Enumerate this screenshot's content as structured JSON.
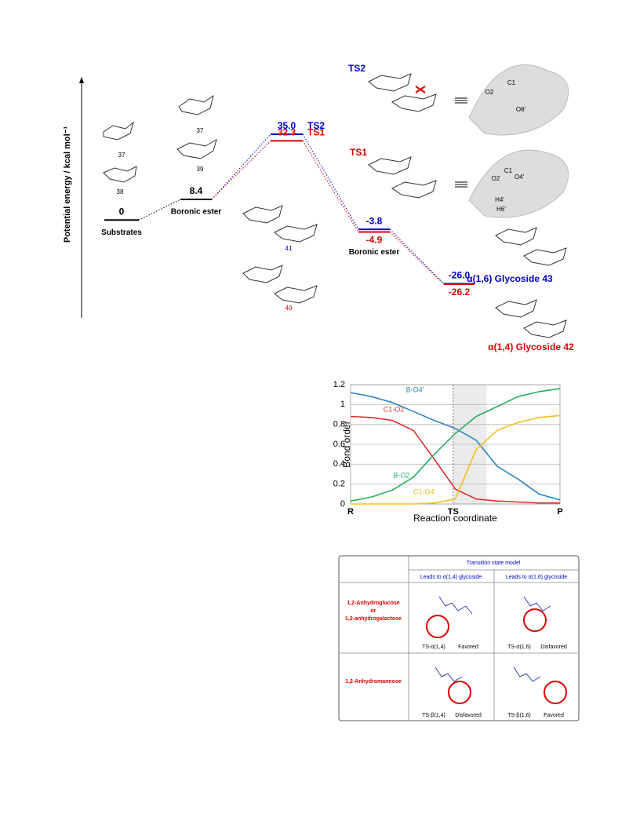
{
  "energy_diagram": {
    "y_label": "Potential energy / kcal mol⁻¹",
    "levels": [
      {
        "name": "Substrates",
        "value": 0,
        "color": "#000000"
      },
      {
        "name": "Boronic ester",
        "value": 8.4,
        "color": "#000000"
      },
      {
        "name": "TS2",
        "value": 35,
        "value_label": "35.0",
        "color": "#0000cc"
      },
      {
        "name": "TS1",
        "value": 32.3,
        "color": "#dd0000"
      },
      {
        "value": -3.8,
        "color": "#0000cc"
      },
      {
        "name": "Boronic ester",
        "value": -4.9,
        "color": "#dd0000"
      },
      {
        "value": -26,
        "value_label": "-26.0",
        "color": "#0000cc"
      },
      {
        "value": -26.2,
        "color": "#dd0000"
      }
    ],
    "compounds": [
      "37",
      "38",
      "37",
      "39",
      "41",
      "40"
    ],
    "structures": [
      {
        "title": "TS2",
        "atoms": [
          "C1",
          "O2",
          "O8'"
        ]
      },
      {
        "title": "TS1",
        "atoms": [
          "C1",
          "O4'",
          "O2",
          "H4'",
          "H6'"
        ]
      }
    ],
    "products": [
      "α(1,6) Glycoside 43",
      "α(1,4) Glycoside 42"
    ]
  },
  "chart_data": {
    "type": "line",
    "x_label": "Reaction coordinate",
    "y_label": "Bond order",
    "x": [
      0,
      0.1,
      0.2,
      0.3,
      0.4,
      0.5,
      0.6,
      0.7,
      0.8,
      0.9,
      1
    ],
    "series": [
      {
        "name": "B-O4'",
        "color": "#2e86c1",
        "values": [
          1.12,
          1.08,
          1.02,
          0.93,
          0.84,
          0.76,
          0.64,
          0.38,
          0.25,
          0.1,
          0.04
        ]
      },
      {
        "name": "C1-O2",
        "color": "#e03030",
        "values": [
          0.88,
          0.87,
          0.84,
          0.74,
          0.45,
          0.15,
          0.05,
          0.03,
          0.02,
          0.01,
          0.01
        ]
      },
      {
        "name": "B-O2",
        "color": "#27ae60",
        "values": [
          0.03,
          0.07,
          0.14,
          0.27,
          0.5,
          0.71,
          0.88,
          0.98,
          1.08,
          1.13,
          1.16
        ]
      },
      {
        "name": "C1-O4'",
        "color": "#f0c020",
        "values": [
          0,
          0,
          0,
          0,
          0.01,
          0.05,
          0.55,
          0.74,
          0.82,
          0.87,
          0.89
        ]
      }
    ],
    "xlim": [
      0,
      1
    ],
    "xticks": [
      {
        "value": 0,
        "label": "R"
      },
      {
        "value": 0.49,
        "label": "TS"
      },
      {
        "value": 1,
        "label": "P"
      }
    ],
    "ylim": [
      0,
      1.2
    ],
    "yticks": [
      0,
      0.2,
      0.4,
      0.6,
      0.8,
      1,
      1.2
    ],
    "highlight": [
      0.49,
      0.65
    ],
    "grid": true
  },
  "table": {
    "header": "Transition state model",
    "columns": [
      "Leads to α(1,4) glycoside",
      "Leads to α(1,6) glycoside"
    ],
    "rows": [
      {
        "label": [
          "1,2-Anhydroglucose",
          "or",
          "1,2-anhydrogalactose"
        ],
        "cells": [
          {
            "name": "TS-α(1,4)",
            "status": "Favored"
          },
          {
            "name": "TS-α(1,6)",
            "status": "Disfavored"
          }
        ]
      },
      {
        "label": [
          "1,2-Anhydromannose"
        ],
        "cells": [
          {
            "name": "TS-β(1,4)",
            "status": "Disfavored"
          },
          {
            "name": "TS-β(1,6)",
            "status": "Favored"
          }
        ]
      }
    ]
  }
}
